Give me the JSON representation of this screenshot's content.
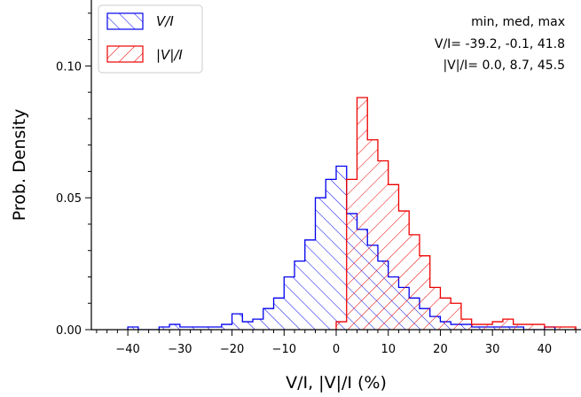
{
  "chart_data": {
    "type": "histogram",
    "xlabel": "V/I, |V|/I (%)",
    "ylabel": "Prob. Density",
    "xlim": [
      -47,
      47
    ],
    "ylim": [
      0,
      0.125
    ],
    "x_ticks": [
      -40,
      -30,
      -20,
      -10,
      0,
      10,
      20,
      30,
      40
    ],
    "x_tick_labels": [
      "−40",
      "−30",
      "−20",
      "−10",
      "0",
      "10",
      "20",
      "30",
      "40"
    ],
    "y_ticks": [
      0.0,
      0.05,
      0.1
    ],
    "y_tick_labels": [
      "0.00",
      "0.05",
      "0.10"
    ],
    "grid": false,
    "legend_position": "top-left",
    "series": [
      {
        "name": "V/I",
        "color": "#0000ee",
        "hatch": "backslash",
        "bin_edges": [
          -40,
          -38,
          -36,
          -34,
          -32,
          -30,
          -28,
          -26,
          -24,
          -22,
          -20,
          -18,
          -16,
          -14,
          -12,
          -10,
          -8,
          -6,
          -4,
          -2,
          0,
          2,
          4,
          6,
          8,
          10,
          12,
          14,
          16,
          18,
          20,
          22,
          24,
          26,
          28,
          30,
          32,
          34,
          36,
          38,
          40,
          42
        ],
        "values": [
          0.001,
          0,
          0,
          0.001,
          0.002,
          0.001,
          0.001,
          0.001,
          0.001,
          0.002,
          0.006,
          0.003,
          0.004,
          0.008,
          0.012,
          0.02,
          0.026,
          0.034,
          0.05,
          0.057,
          0.062,
          0.044,
          0.038,
          0.032,
          0.026,
          0.02,
          0.016,
          0.012,
          0.008,
          0.005,
          0.003,
          0.002,
          0.002,
          0.001,
          0.001,
          0.001,
          0.001,
          0.001,
          0,
          0,
          0.001
        ]
      },
      {
        "name": "|V|/I",
        "color": "#ee0000",
        "hatch": "slash",
        "bin_edges": [
          0,
          2,
          4,
          6,
          8,
          10,
          12,
          14,
          16,
          18,
          20,
          22,
          24,
          26,
          28,
          30,
          32,
          34,
          36,
          38,
          40,
          42,
          44,
          46
        ],
        "values": [
          0.003,
          0.057,
          0.088,
          0.072,
          0.064,
          0.055,
          0.045,
          0.036,
          0.028,
          0.016,
          0.012,
          0.01,
          0.004,
          0.002,
          0.002,
          0.003,
          0.004,
          0.002,
          0.002,
          0.002,
          0.001,
          0.001,
          0.001
        ]
      }
    ],
    "legend": [
      {
        "label": "V/I",
        "italic": true
      },
      {
        "label": "|V|/I",
        "italic": true
      }
    ],
    "annotation": {
      "header": "min, med, max",
      "lines": [
        "V/I= -39.2, -0.1, 41.8",
        "|V|/I= 0.0,  8.7, 45.5"
      ]
    }
  }
}
